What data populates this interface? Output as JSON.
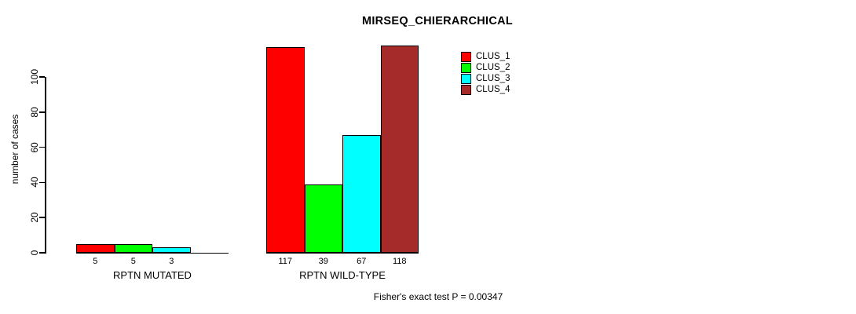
{
  "title": "MIRSEQ_CHIERARCHICAL",
  "y_axis": {
    "label": "number of cases",
    "ticks": [
      0,
      20,
      40,
      60,
      80,
      100
    ],
    "lim": [
      0,
      100
    ]
  },
  "footer": "Fisher's exact test P = 0.00347",
  "legend": {
    "position": "top-right",
    "entries": [
      {
        "label": "CLUS_1",
        "color": "#ff0000"
      },
      {
        "label": "CLUS_2",
        "color": "#00ff00"
      },
      {
        "label": "CLUS_3",
        "color": "#00ffff"
      },
      {
        "label": "CLUS_4",
        "color": "#a52a2a"
      }
    ]
  },
  "chart_data": {
    "type": "bar",
    "title": "MIRSEQ_CHIERARCHICAL",
    "ylabel": "number of cases",
    "xlabel": "",
    "ylim": [
      0,
      100
    ],
    "yticks": [
      0,
      20,
      40,
      60,
      80,
      100
    ],
    "grid": false,
    "legend_position": "top-right",
    "categories": [
      "RPTN MUTATED",
      "RPTN WILD-TYPE"
    ],
    "series": [
      {
        "name": "CLUS_1",
        "color": "#ff0000",
        "values": [
          5,
          117
        ]
      },
      {
        "name": "CLUS_2",
        "color": "#00ff00",
        "values": [
          5,
          39
        ]
      },
      {
        "name": "CLUS_3",
        "color": "#00ffff",
        "values": [
          3,
          67
        ]
      },
      {
        "name": "CLUS_4",
        "color": "#a52a2a",
        "values": [
          0,
          118
        ]
      }
    ],
    "bar_value_labels": [
      [
        "5",
        "5",
        "3",
        ""
      ],
      [
        "117",
        "39",
        "67",
        "118"
      ]
    ],
    "annotation": "Fisher's exact test P = 0.00347"
  }
}
